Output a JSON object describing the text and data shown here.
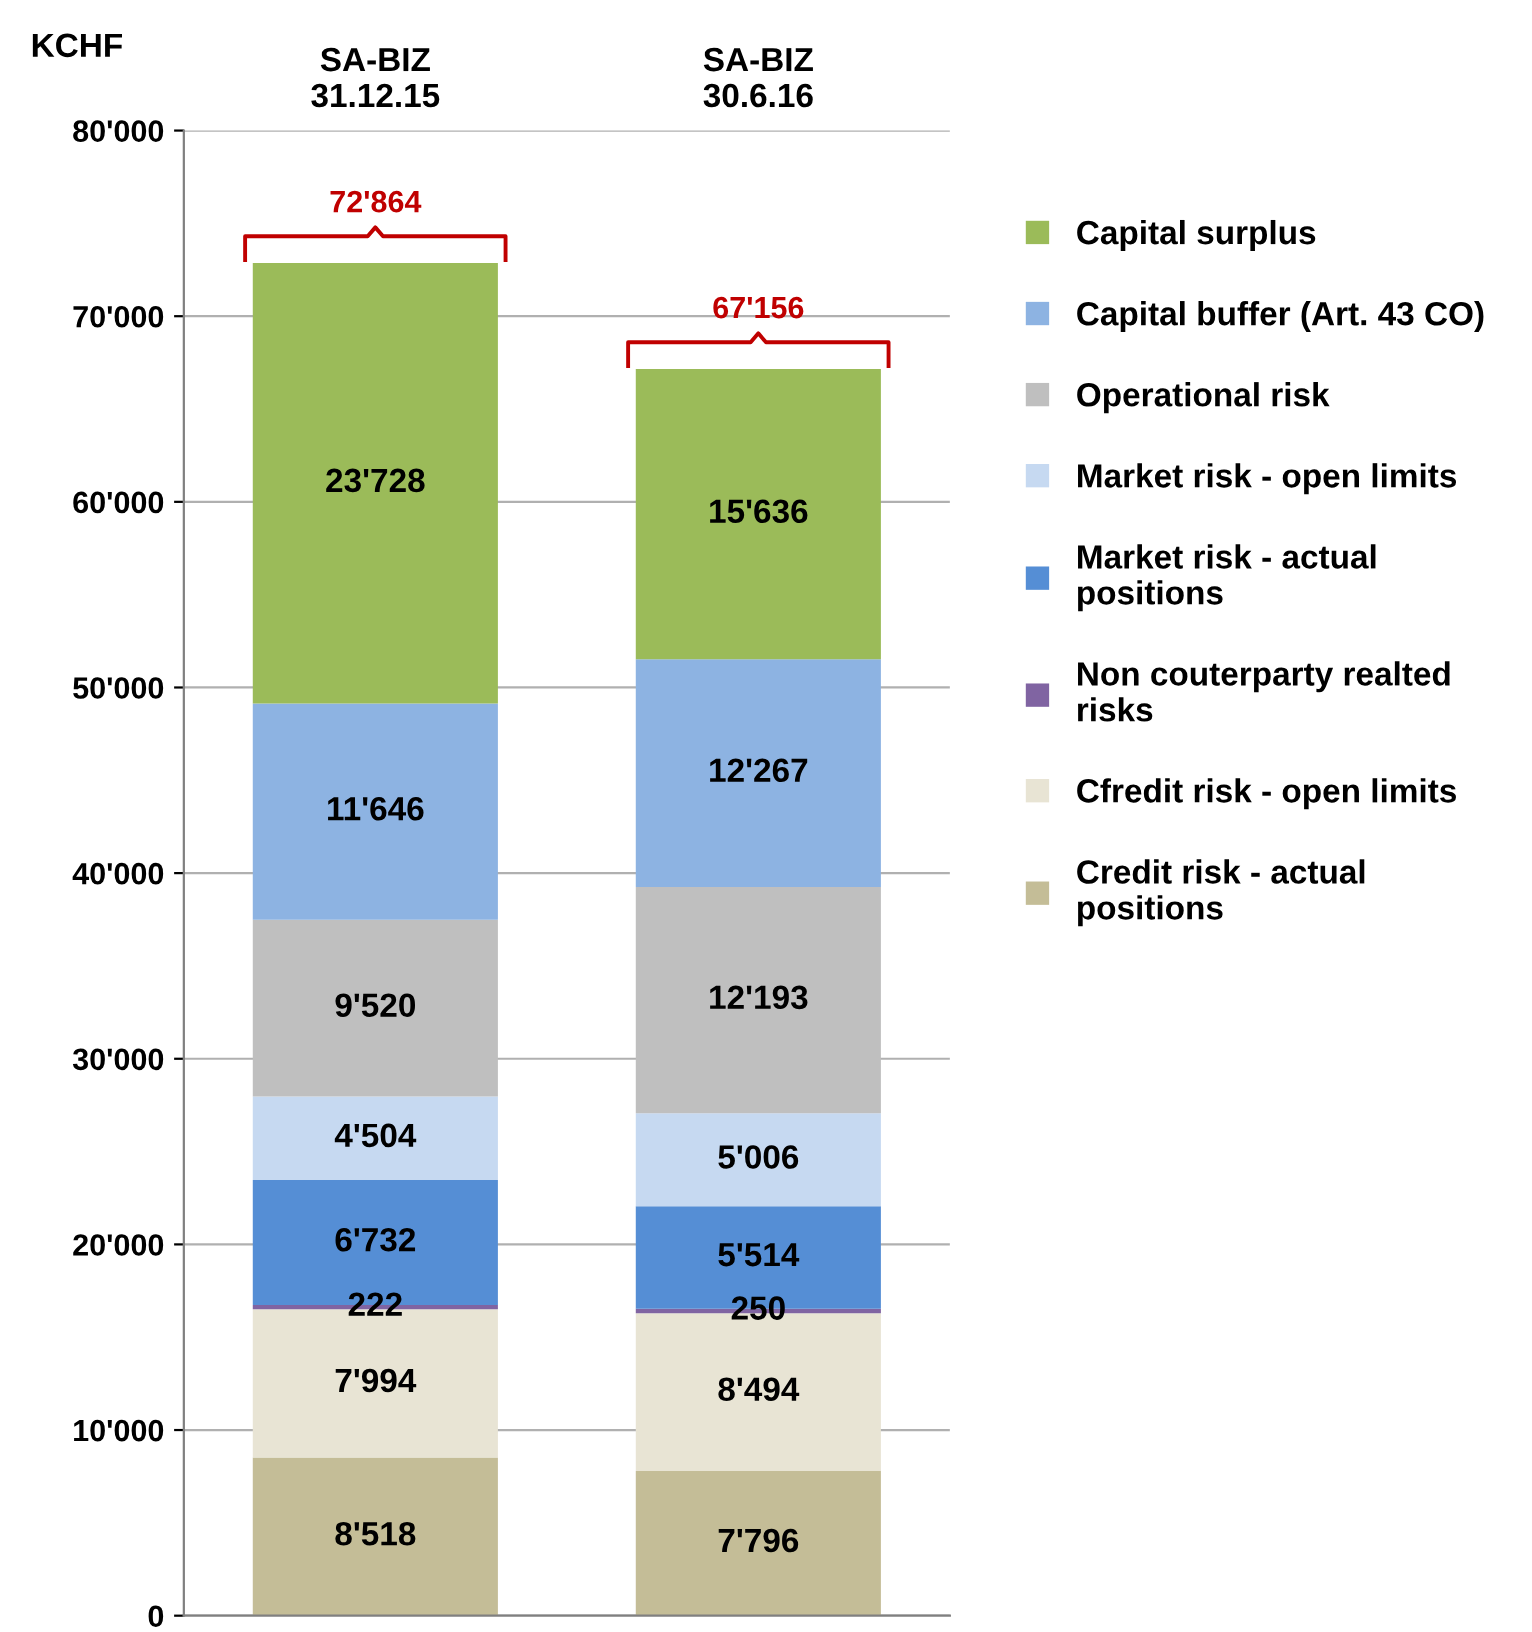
{
  "chart_data": {
    "type": "bar",
    "stacked": true,
    "ylabel": "KCHF",
    "categories": [
      "SA-BIZ\n31.12.15",
      "SA-BIZ\n30.6.16"
    ],
    "series": [
      {
        "name": "Credit risk - actual\npositions",
        "color": "#c4bd97",
        "values": [
          8518,
          7796
        ],
        "value_labels": [
          "8'518",
          "7'796"
        ]
      },
      {
        "name": "Cfredit risk - open limits",
        "color": "#e8e4d4",
        "values": [
          7994,
          8494
        ],
        "value_labels": [
          "7'994",
          "8'494"
        ]
      },
      {
        "name": "Non couterparty realted\nrisks",
        "color": "#8064a2",
        "values": [
          222,
          250
        ],
        "value_labels": [
          "222",
          "250"
        ]
      },
      {
        "name": "Market risk - actual\npositions",
        "color": "#558ed5",
        "values": [
          6732,
          5514
        ],
        "value_labels": [
          "6'732",
          "5'514"
        ]
      },
      {
        "name": "Market risk - open limits",
        "color": "#c6d9f1",
        "values": [
          4504,
          5006
        ],
        "value_labels": [
          "4'504",
          "5'006"
        ]
      },
      {
        "name": "Operational risk",
        "color": "#bfbfbf",
        "values": [
          9520,
          12193
        ],
        "value_labels": [
          "9'520",
          "12'193"
        ]
      },
      {
        "name": "Capital buffer (Art. 43 CO)",
        "color": "#8db3e2",
        "values": [
          11646,
          12267
        ],
        "value_labels": [
          "11'646",
          "12'267"
        ]
      },
      {
        "name": "Capital surplus",
        "color": "#9bbb59",
        "values": [
          23728,
          15636
        ],
        "value_labels": [
          "23'728",
          "15'636"
        ]
      }
    ],
    "totals": [
      "72'864",
      "67'156"
    ],
    "ylim": [
      0,
      80000
    ],
    "yticks": [
      {
        "value": 0,
        "label": "0"
      },
      {
        "value": 10000,
        "label": "10'000"
      },
      {
        "value": 20000,
        "label": "20'000"
      },
      {
        "value": 30000,
        "label": "30'000"
      },
      {
        "value": 40000,
        "label": "40'000"
      },
      {
        "value": 50000,
        "label": "50'000"
      },
      {
        "value": 60000,
        "label": "60'000"
      },
      {
        "value": 70000,
        "label": "70'000"
      },
      {
        "value": 80000,
        "label": "80'000"
      }
    ],
    "grid": "y",
    "legend": "right"
  }
}
